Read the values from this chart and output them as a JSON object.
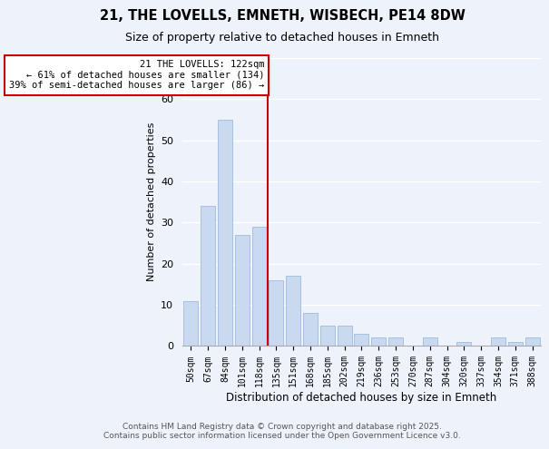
{
  "title": "21, THE LOVELLS, EMNETH, WISBECH, PE14 8DW",
  "subtitle": "Size of property relative to detached houses in Emneth",
  "xlabel": "Distribution of detached houses by size in Emneth",
  "ylabel": "Number of detached properties",
  "bar_labels": [
    "50sqm",
    "67sqm",
    "84sqm",
    "101sqm",
    "118sqm",
    "135sqm",
    "151sqm",
    "168sqm",
    "185sqm",
    "202sqm",
    "219sqm",
    "236sqm",
    "253sqm",
    "270sqm",
    "287sqm",
    "304sqm",
    "320sqm",
    "337sqm",
    "354sqm",
    "371sqm",
    "388sqm"
  ],
  "bar_values": [
    11,
    34,
    55,
    27,
    29,
    16,
    17,
    8,
    5,
    5,
    3,
    2,
    2,
    0,
    2,
    0,
    1,
    0,
    2,
    1,
    2
  ],
  "bar_color": "#c8d9f0",
  "bar_edgecolor": "#a8c0e0",
  "vline_color": "#cc0000",
  "ylim": [
    0,
    70
  ],
  "yticks": [
    0,
    10,
    20,
    30,
    40,
    50,
    60,
    70
  ],
  "annotation_title": "21 THE LOVELLS: 122sqm",
  "annotation_line1": "← 61% of detached houses are smaller (134)",
  "annotation_line2": "39% of semi-detached houses are larger (86) →",
  "annotation_box_color": "#ffffff",
  "annotation_box_edgecolor": "#cc0000",
  "footer_line1": "Contains HM Land Registry data © Crown copyright and database right 2025.",
  "footer_line2": "Contains public sector information licensed under the Open Government Licence v3.0.",
  "background_color": "#eef2fb",
  "grid_color": "#ffffff"
}
